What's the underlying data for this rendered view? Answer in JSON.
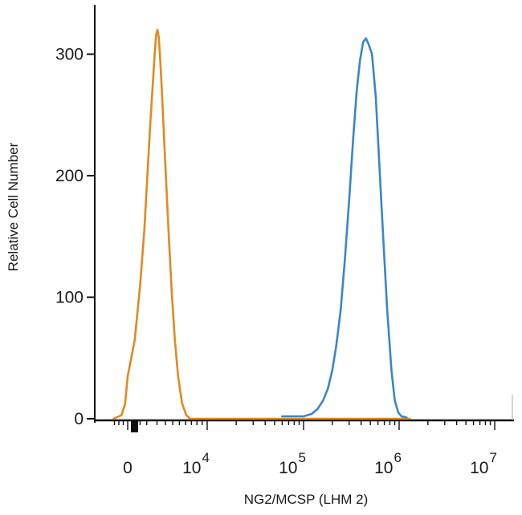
{
  "chart_data": {
    "type": "line",
    "title": "",
    "xlabel": "NG2/MCSP (LHM 2)",
    "ylabel": "Relative Cell Number",
    "x_scale": "biexponential",
    "ylim": [
      0,
      340
    ],
    "y_ticks": [
      {
        "value": 0,
        "label": "0"
      },
      {
        "value": 100,
        "label": "100"
      },
      {
        "value": 200,
        "label": "200"
      },
      {
        "value": 300,
        "label": "300"
      }
    ],
    "x_ticks": [
      {
        "value": 0,
        "label": "0",
        "base": "",
        "exp": ""
      },
      {
        "value": 10000,
        "label": "10^4",
        "base": "10",
        "exp": "4"
      },
      {
        "value": 100000,
        "label": "10^5",
        "base": "10",
        "exp": "5"
      },
      {
        "value": 1000000,
        "label": "10^6",
        "base": "10",
        "exp": "6"
      },
      {
        "value": 10000000,
        "label": "10^7",
        "base": "10",
        "exp": "7"
      }
    ],
    "grid": false,
    "legend": "none",
    "series": [
      {
        "color": "#E08A1E",
        "points": [
          [
            -1600,
            0
          ],
          [
            -700,
            3
          ],
          [
            -300,
            12
          ],
          [
            0,
            35
          ],
          [
            200,
            65
          ],
          [
            500,
            110
          ],
          [
            800,
            155
          ],
          [
            1050,
            200
          ],
          [
            1300,
            240
          ],
          [
            1550,
            275
          ],
          [
            1750,
            300
          ],
          [
            1900,
            316
          ],
          [
            2050,
            320
          ],
          [
            2200,
            314
          ],
          [
            2350,
            298
          ],
          [
            2550,
            272
          ],
          [
            2800,
            235
          ],
          [
            3100,
            195
          ],
          [
            3450,
            150
          ],
          [
            3850,
            105
          ],
          [
            4300,
            65
          ],
          [
            4800,
            35
          ],
          [
            5400,
            13
          ],
          [
            6100,
            3
          ],
          [
            6800,
            0
          ]
        ]
      },
      {
        "color": "#3A86C8",
        "points": [
          [
            60000,
            2
          ],
          [
            100000,
            2
          ],
          [
            122000,
            4
          ],
          [
            140000,
            8
          ],
          [
            160000,
            15
          ],
          [
            180000,
            25
          ],
          [
            200000,
            40
          ],
          [
            220000,
            60
          ],
          [
            245000,
            90
          ],
          [
            270000,
            130
          ],
          [
            300000,
            180
          ],
          [
            330000,
            230
          ],
          [
            360000,
            270
          ],
          [
            390000,
            295
          ],
          [
            420000,
            310
          ],
          [
            450000,
            313
          ],
          [
            480000,
            308
          ],
          [
            520000,
            300
          ],
          [
            570000,
            265
          ],
          [
            620000,
            210
          ],
          [
            680000,
            150
          ],
          [
            750000,
            90
          ],
          [
            830000,
            40
          ],
          [
            900000,
            15
          ],
          [
            980000,
            5
          ],
          [
            1060000,
            2
          ],
          [
            1200000,
            1
          ]
        ]
      }
    ]
  }
}
